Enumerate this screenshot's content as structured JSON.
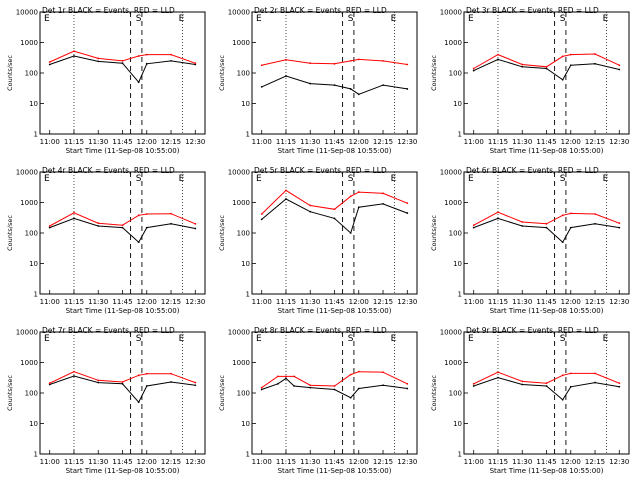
{
  "figure": {
    "ylabel": "Counts/sec",
    "xlabel": "Start Time (11-Sep-08 10:55:00)",
    "xticks": [
      "11:00",
      "11:15",
      "11:30",
      "11:45",
      "12:00",
      "12:15",
      "12:30"
    ],
    "yticks": [
      "1",
      "10",
      "100",
      "1000",
      "10000"
    ],
    "marker_labels": [
      "E",
      "S",
      "E"
    ],
    "colors": {
      "events": "#000000",
      "lld": "#ff0000"
    }
  },
  "chart_data": [
    {
      "type": "line",
      "title": "Det 1r BLACK = Events, RED = LLD",
      "x": [
        "11:00",
        "11:15",
        "11:30",
        "11:45",
        "11:55",
        "12:00",
        "12:15",
        "12:30"
      ],
      "series": [
        {
          "name": "Events",
          "values": [
            190,
            360,
            240,
            210,
            50,
            200,
            250,
            190
          ]
        },
        {
          "name": "LLD",
          "values": [
            230,
            520,
            300,
            250,
            360,
            400,
            400,
            210
          ]
        }
      ],
      "ylim": [
        1,
        10000
      ],
      "yscale": "log"
    },
    {
      "type": "line",
      "title": "Det 2r BLACK = Events, RED = LLD",
      "x": [
        "11:00",
        "11:15",
        "11:30",
        "11:45",
        "11:55",
        "12:00",
        "12:15",
        "12:30"
      ],
      "series": [
        {
          "name": "Events",
          "values": [
            35,
            80,
            45,
            40,
            30,
            20,
            40,
            30
          ]
        },
        {
          "name": "LLD",
          "values": [
            180,
            270,
            210,
            200,
            250,
            280,
            250,
            190
          ]
        }
      ],
      "ylim": [
        1,
        10000
      ],
      "yscale": "log"
    },
    {
      "type": "line",
      "title": "Det 3r BLACK = Events, RED = LLD",
      "x": [
        "11:00",
        "11:15",
        "11:30",
        "11:45",
        "11:55",
        "12:00",
        "12:15",
        "12:30"
      ],
      "series": [
        {
          "name": "Events",
          "values": [
            120,
            280,
            160,
            140,
            60,
            180,
            200,
            130
          ]
        },
        {
          "name": "LLD",
          "values": [
            140,
            400,
            190,
            160,
            350,
            400,
            420,
            180
          ]
        }
      ],
      "ylim": [
        1,
        10000
      ],
      "yscale": "log"
    },
    {
      "type": "line",
      "title": "Det 4r BLACK = Events, RED = LLD",
      "x": [
        "11:00",
        "11:15",
        "11:30",
        "11:45",
        "11:55",
        "12:00",
        "12:15",
        "12:30"
      ],
      "series": [
        {
          "name": "Events",
          "values": [
            150,
            300,
            170,
            150,
            50,
            150,
            200,
            140
          ]
        },
        {
          "name": "LLD",
          "values": [
            170,
            460,
            210,
            180,
            380,
            420,
            430,
            200
          ]
        }
      ],
      "ylim": [
        1,
        10000
      ],
      "yscale": "log"
    },
    {
      "type": "line",
      "title": "Det 5r BLACK = Events, RED = LLD",
      "x": [
        "11:00",
        "11:15",
        "11:30",
        "11:45",
        "11:55",
        "12:00",
        "12:15",
        "12:30"
      ],
      "series": [
        {
          "name": "Events",
          "values": [
            280,
            1300,
            500,
            300,
            100,
            700,
            900,
            450
          ]
        },
        {
          "name": "LLD",
          "values": [
            420,
            2500,
            800,
            600,
            1600,
            2200,
            2000,
            950
          ]
        }
      ],
      "ylim": [
        1,
        10000
      ],
      "yscale": "log"
    },
    {
      "type": "line",
      "title": "Det 6r BLACK = Events, RED = LLD",
      "x": [
        "11:00",
        "11:15",
        "11:30",
        "11:45",
        "11:55",
        "12:00",
        "12:15",
        "12:30"
      ],
      "series": [
        {
          "name": "Events",
          "values": [
            150,
            300,
            170,
            150,
            50,
            150,
            200,
            150
          ]
        },
        {
          "name": "LLD",
          "values": [
            180,
            480,
            230,
            200,
            380,
            440,
            420,
            210
          ]
        }
      ],
      "ylim": [
        1,
        10000
      ],
      "yscale": "log"
    },
    {
      "type": "line",
      "title": "Det 7r BLACK = Events, RED = LLD",
      "x": [
        "11:00",
        "11:15",
        "11:30",
        "11:45",
        "11:55",
        "12:00",
        "12:15",
        "12:30"
      ],
      "series": [
        {
          "name": "Events",
          "values": [
            190,
            360,
            220,
            200,
            50,
            170,
            230,
            180
          ]
        },
        {
          "name": "LLD",
          "values": [
            210,
            500,
            260,
            230,
            380,
            430,
            430,
            220
          ]
        }
      ],
      "ylim": [
        1,
        10000
      ],
      "yscale": "log"
    },
    {
      "type": "line",
      "title": "Det 8r BLACK = Events, RED = LLD",
      "x": [
        "11:00",
        "11:10",
        "11:15",
        "11:20",
        "11:30",
        "11:45",
        "11:55",
        "12:00",
        "12:15",
        "12:30"
      ],
      "series": [
        {
          "name": "Events",
          "values": [
            130,
            200,
            300,
            170,
            150,
            130,
            70,
            140,
            180,
            140
          ]
        },
        {
          "name": "LLD",
          "values": [
            150,
            350,
            350,
            350,
            180,
            170,
            400,
            500,
            480,
            200
          ]
        }
      ],
      "ylim": [
        1,
        10000
      ],
      "yscale": "log"
    },
    {
      "type": "line",
      "title": "Det 9r BLACK = Events, RED = LLD",
      "x": [
        "11:00",
        "11:15",
        "11:30",
        "11:45",
        "11:55",
        "12:00",
        "12:15",
        "12:30"
      ],
      "series": [
        {
          "name": "Events",
          "values": [
            170,
            320,
            190,
            170,
            60,
            160,
            220,
            160
          ]
        },
        {
          "name": "LLD",
          "values": [
            200,
            480,
            240,
            210,
            380,
            440,
            440,
            210
          ]
        }
      ],
      "ylim": [
        1,
        10000
      ],
      "yscale": "log"
    }
  ]
}
